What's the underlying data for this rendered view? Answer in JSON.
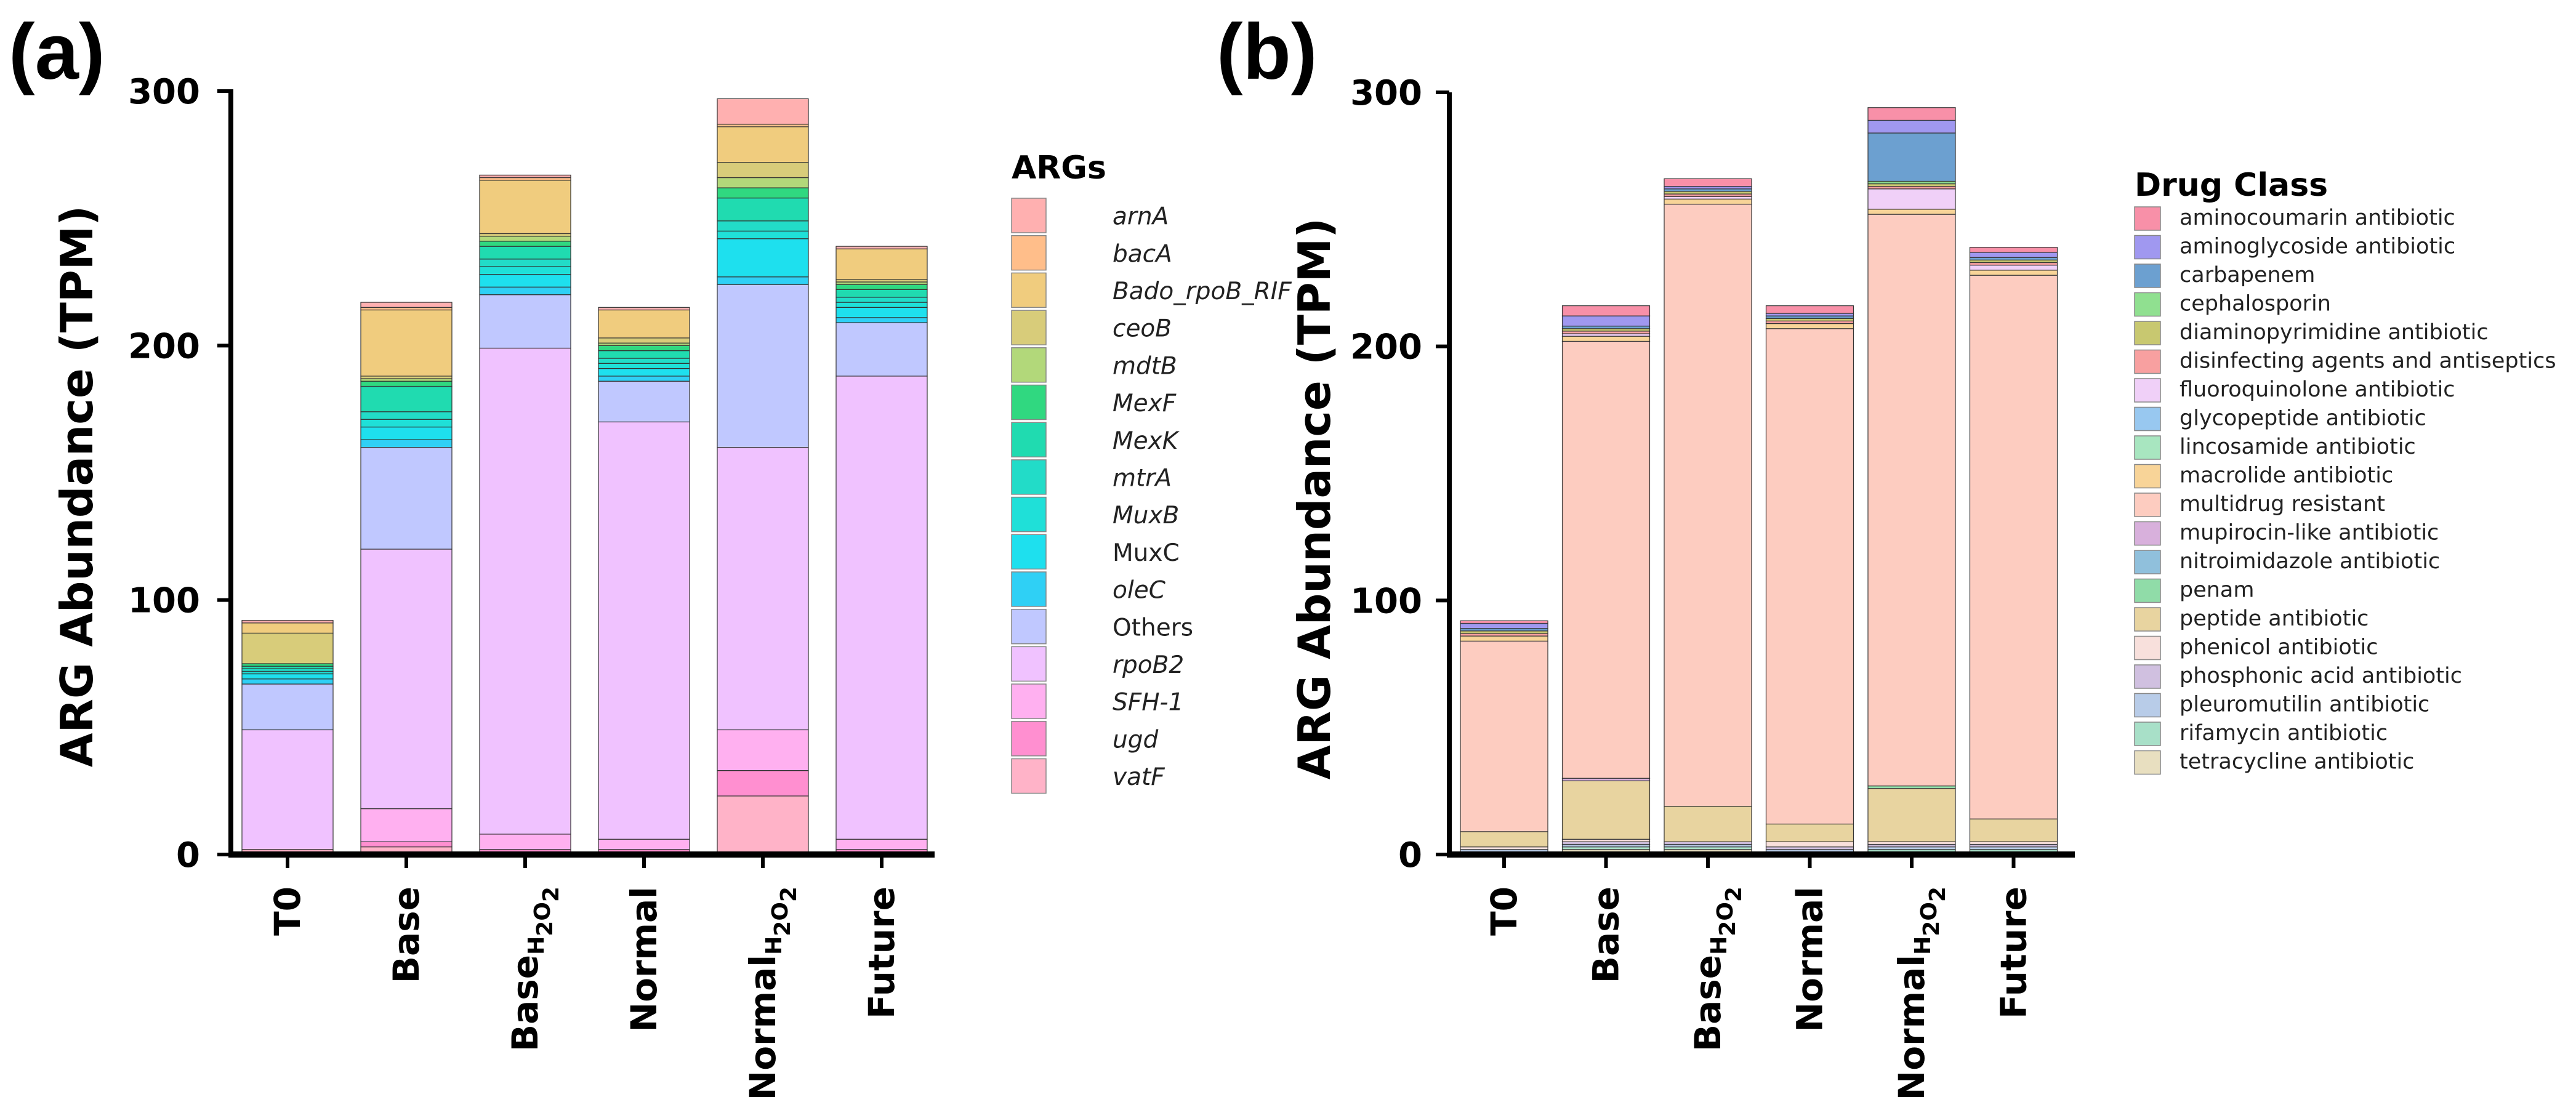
{
  "panels": {
    "a_label": "(a)",
    "b_label": "(b)"
  },
  "chart_data": [
    {
      "type": "bar",
      "stacked": true,
      "panel": "(a)",
      "ylabel": "ARG Abundance (TPM)",
      "ylim": [
        0,
        300
      ],
      "yticks": [
        "0",
        "100",
        "200",
        "300"
      ],
      "categories": [
        {
          "base": "T0",
          "sub": ""
        },
        {
          "base": "Base",
          "sub": ""
        },
        {
          "base": "Base",
          "sub": "H2O2"
        },
        {
          "base": "Normal",
          "sub": ""
        },
        {
          "base": "Normal",
          "sub": "H2O2"
        },
        {
          "base": "Future",
          "sub": ""
        }
      ],
      "legend_title": "ARGs",
      "series": [
        {
          "name": "vatF",
          "italic": true,
          "color": "#ffb3c8",
          "values": [
            2,
            3,
            1,
            1,
            23,
            1
          ]
        },
        {
          "name": "ugd",
          "italic": true,
          "color": "#ff8fd0",
          "values": [
            0,
            2,
            1,
            1,
            10,
            1
          ]
        },
        {
          "name": "SFH-1",
          "italic": true,
          "color": "#ffb0f0",
          "values": [
            0,
            13,
            6,
            4,
            16,
            4
          ]
        },
        {
          "name": "rpoB2",
          "italic": true,
          "color": "#f0c2ff",
          "values": [
            47,
            102,
            191,
            164,
            111,
            182
          ]
        },
        {
          "name": "Others",
          "italic": false,
          "color": "#c0c8ff",
          "values": [
            18,
            40,
            21,
            16,
            64,
            21
          ]
        },
        {
          "name": "oleC",
          "italic": true,
          "color": "#2fd0f5",
          "values": [
            2,
            3,
            3,
            2,
            3,
            2
          ]
        },
        {
          "name": "MuxC",
          "italic": false,
          "color": "#1ee0ee",
          "values": [
            2,
            5,
            5,
            3,
            15,
            4
          ]
        },
        {
          "name": "MuxB",
          "italic": true,
          "color": "#1fe0d8",
          "values": [
            1,
            3,
            3,
            2,
            3,
            2
          ]
        },
        {
          "name": "mtrA",
          "italic": true,
          "color": "#22dcc8",
          "values": [
            1,
            3,
            3,
            2,
            4,
            2
          ]
        },
        {
          "name": "MexK",
          "italic": true,
          "color": "#20dbb0",
          "values": [
            1,
            10,
            5,
            3,
            9,
            3
          ]
        },
        {
          "name": "MexF",
          "italic": true,
          "color": "#30d880",
          "values": [
            1,
            2,
            2,
            2,
            4,
            2
          ]
        },
        {
          "name": "mdtB",
          "italic": true,
          "color": "#b2d87a",
          "values": [
            0,
            1,
            2,
            1,
            4,
            1
          ]
        },
        {
          "name": "ceoB",
          "italic": true,
          "color": "#d8cc7a",
          "values": [
            12,
            1,
            1,
            2,
            6,
            1
          ]
        },
        {
          "name": "Bado_rpoB_RIF",
          "italic": true,
          "color": "#f0cc7e",
          "values": [
            4,
            26,
            21,
            11,
            14,
            12
          ]
        },
        {
          "name": "bacA",
          "italic": true,
          "color": "#ffbe8a",
          "values": [
            0,
            1,
            1,
            0,
            1,
            0
          ]
        },
        {
          "name": "arnA",
          "italic": true,
          "color": "#ffb0b0",
          "values": [
            1,
            2,
            1,
            1,
            10,
            1
          ]
        }
      ]
    },
    {
      "type": "bar",
      "stacked": true,
      "panel": "(b)",
      "ylabel": "ARG Abundance (TPM)",
      "ylim": [
        0,
        300
      ],
      "yticks": [
        "0",
        "100",
        "200",
        "300"
      ],
      "categories": [
        {
          "base": "T0",
          "sub": ""
        },
        {
          "base": "Base",
          "sub": ""
        },
        {
          "base": "Base",
          "sub": "H2O2"
        },
        {
          "base": "Normal",
          "sub": ""
        },
        {
          "base": "Normal",
          "sub": "H2O2"
        },
        {
          "base": "Future",
          "sub": ""
        }
      ],
      "legend_title": "Drug Class",
      "series": [
        {
          "name": "tetracycline antibiotic",
          "color": "#e8dfc0",
          "values": [
            1,
            2,
            2,
            1,
            1,
            1
          ]
        },
        {
          "name": "rifamycin antibiotic",
          "color": "#a8e0c8",
          "values": [
            0,
            1,
            1,
            0,
            1,
            1
          ]
        },
        {
          "name": "pleuromutilin antibiotic",
          "color": "#b8cce8",
          "values": [
            1,
            1,
            1,
            1,
            1,
            1
          ]
        },
        {
          "name": "phosphonic acid antibiotic",
          "color": "#d0c0e0",
          "values": [
            0,
            1,
            1,
            1,
            1,
            1
          ]
        },
        {
          "name": "phenicol antibiotic",
          "color": "#f8e0dc",
          "values": [
            1,
            1,
            0,
            2,
            1,
            1
          ]
        },
        {
          "name": "peptide antibiotic",
          "color": "#e8d4a0",
          "values": [
            6,
            23,
            14,
            7,
            21,
            9
          ]
        },
        {
          "name": "penam",
          "color": "#90dca8",
          "values": [
            0,
            0,
            0,
            0,
            1,
            0
          ]
        },
        {
          "name": "nitroimidazole antibiotic",
          "color": "#90c0dc",
          "values": [
            0,
            0,
            0,
            0,
            0,
            0
          ]
        },
        {
          "name": "mupirocin-like antibiotic",
          "color": "#d8b0dc",
          "values": [
            0,
            1,
            0,
            0,
            0,
            0
          ]
        },
        {
          "name": "multidrug resistant",
          "color": "#fdccc0",
          "values": [
            75,
            172,
            237,
            195,
            225,
            214
          ]
        },
        {
          "name": "macrolide antibiotic",
          "color": "#f8d498",
          "values": [
            2,
            2,
            2,
            2,
            2,
            2
          ]
        },
        {
          "name": "lincosamide antibiotic",
          "color": "#a8e6c0",
          "values": [
            0,
            0,
            0,
            0,
            0,
            0
          ]
        },
        {
          "name": "glycopeptide antibiotic",
          "color": "#98c8f0",
          "values": [
            0,
            0,
            0,
            0,
            0,
            0
          ]
        },
        {
          "name": "fluoroquinolone antibiotic",
          "color": "#f0d0f8",
          "values": [
            0,
            1,
            1,
            0,
            8,
            2
          ]
        },
        {
          "name": "disinfecting agents and antiseptics",
          "color": "#f8a0a0",
          "values": [
            1,
            1,
            1,
            1,
            1,
            1
          ]
        },
        {
          "name": "diaminopyrimidine antibiotic",
          "color": "#c8c870",
          "values": [
            1,
            1,
            1,
            1,
            1,
            1
          ]
        },
        {
          "name": "cephalosporin",
          "color": "#90e090",
          "values": [
            0,
            0,
            0,
            0,
            1,
            0
          ]
        },
        {
          "name": "carbapenem",
          "color": "#6ca0d0",
          "values": [
            1,
            1,
            1,
            1,
            19,
            1
          ]
        },
        {
          "name": "aminoglycoside antibiotic",
          "color": "#a098f0",
          "values": [
            2,
            4,
            1,
            1,
            5,
            2
          ]
        },
        {
          "name": "aminocoumarin antibiotic",
          "color": "#f890a8",
          "values": [
            1,
            4,
            3,
            3,
            5,
            2
          ]
        }
      ]
    }
  ]
}
